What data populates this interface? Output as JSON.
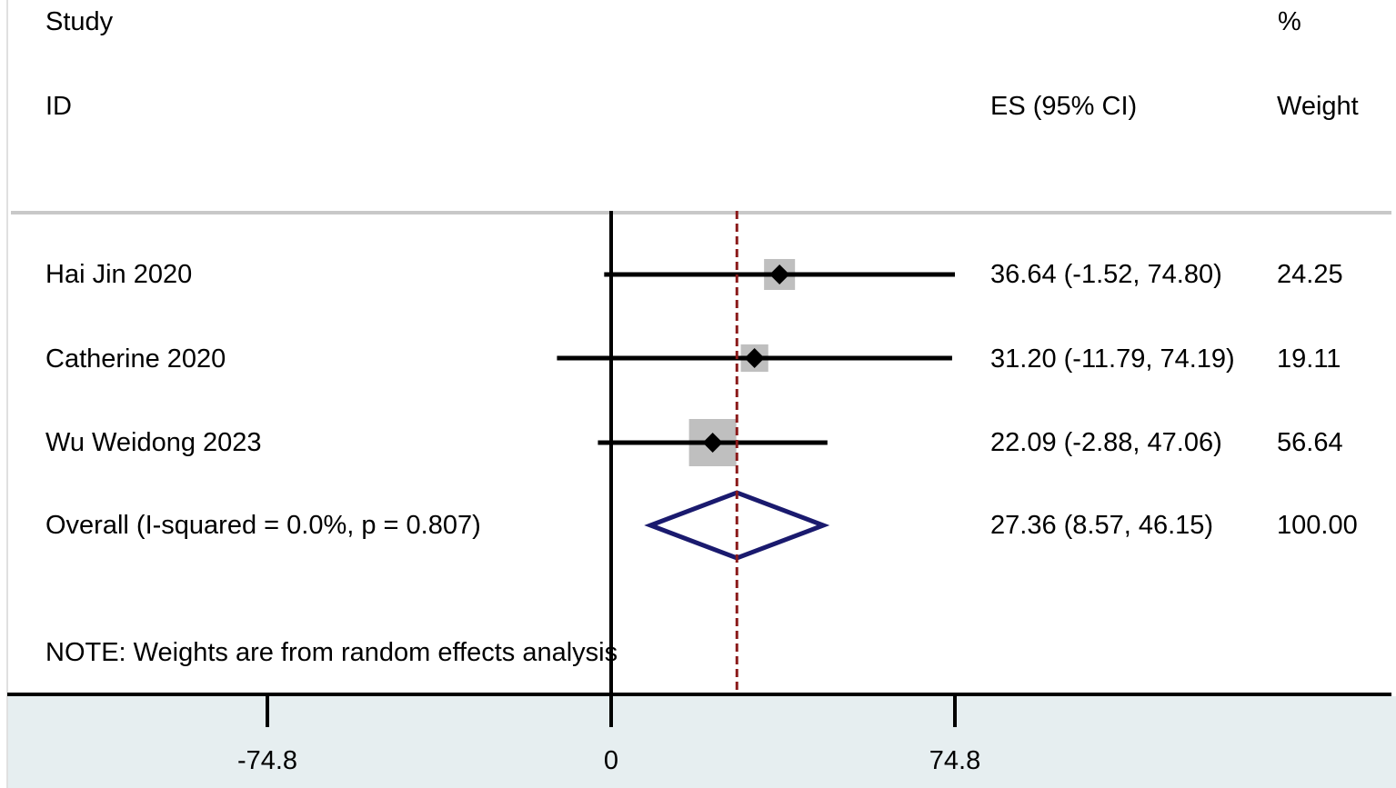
{
  "chart_data": {
    "type": "forest",
    "headers": {
      "study_top": "Study",
      "study_bottom": "ID",
      "es": "ES (95% CI)",
      "weight_top": "%",
      "weight_bottom": "Weight"
    },
    "studies": [
      {
        "name": "Hai Jin 2020",
        "es": 36.64,
        "lo": -1.52,
        "hi": 74.8,
        "es_text": "36.64 (-1.52, 74.80)",
        "weight": 24.25,
        "weight_text": "24.25"
      },
      {
        "name": "Catherine 2020",
        "es": 31.2,
        "lo": -11.79,
        "hi": 74.19,
        "es_text": "31.20 (-11.79, 74.19)",
        "weight": 19.11,
        "weight_text": "19.11"
      },
      {
        "name": "Wu Weidong 2023",
        "es": 22.09,
        "lo": -2.88,
        "hi": 47.06,
        "es_text": "22.09 (-2.88, 47.06)",
        "weight": 56.64,
        "weight_text": "56.64"
      }
    ],
    "overall": {
      "label": "Overall  (I-squared = 0.0%, p = 0.807)",
      "es": 27.36,
      "lo": 8.57,
      "hi": 46.15,
      "es_text": "27.36 (8.57, 46.15)",
      "weight_text": "100.00"
    },
    "note": "NOTE: Weights are from random effects analysis",
    "x_ticks": [
      -74.8,
      0,
      74.8
    ],
    "x_tick_labels": [
      "-74.8",
      "0",
      "74.8"
    ],
    "xlim": [
      -74.8,
      74.8
    ],
    "colors": {
      "ci_line": "#000000",
      "weight_box": "#bfbfbf",
      "point": "#000000",
      "diamond": "#1a1a6e",
      "ref_line": "#8b1a1a",
      "null_line": "#000000",
      "divider": "#c8c8c8",
      "axis_band": "#e6eef0"
    }
  }
}
